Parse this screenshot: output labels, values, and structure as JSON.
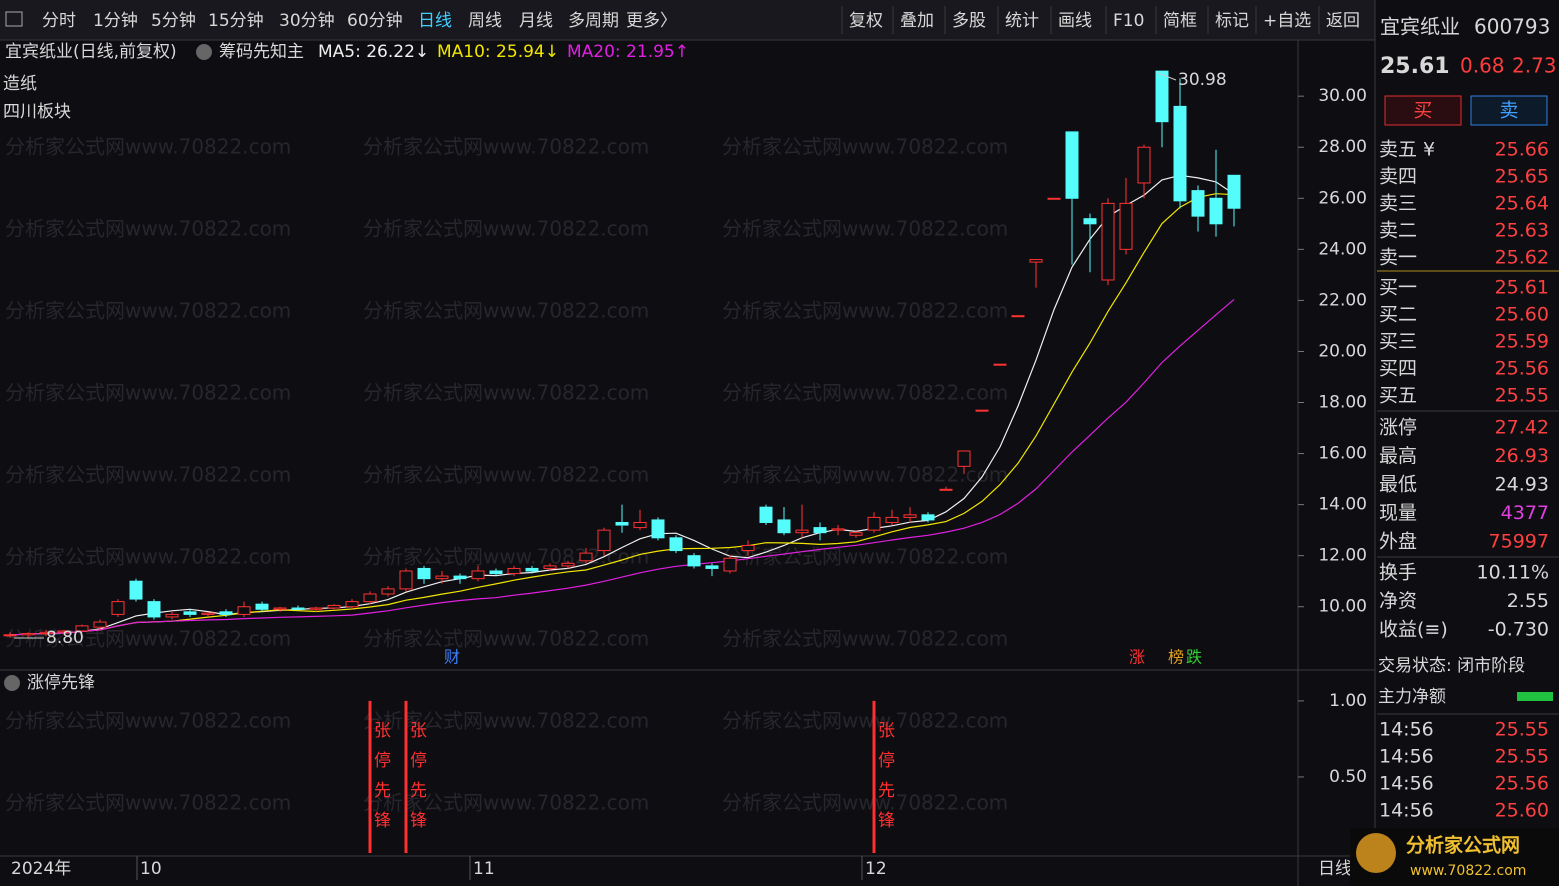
{
  "toolbar": {
    "left": [
      "分时",
      "1分钟",
      "5分钟",
      "15分钟",
      "30分钟",
      "60分钟",
      "日线",
      "周线",
      "月线",
      "多周期",
      "更多〉"
    ],
    "active_index": 6,
    "right": [
      "复权",
      "叠加",
      "多股",
      "统计",
      "画线",
      "F10",
      "简框",
      "标记",
      "+自选",
      "返回"
    ]
  },
  "chart": {
    "caption": "宜宾纸业(日线,前复权)",
    "indicator": "筹码先知主",
    "industry": "造纸",
    "region": "四川板块",
    "ma": [
      {
        "label": "MA5: 26.22↓",
        "value": 26.22,
        "period": 5,
        "color": "#f0f0f0"
      },
      {
        "label": "MA10: 25.94↓",
        "value": 25.94,
        "period": 10,
        "color": "#f2e600"
      },
      {
        "label": "MA20: 21.95↑",
        "value": 21.95,
        "period": 20,
        "color": "#e020e0"
      }
    ],
    "ylim": [
      7.6,
      32.2
    ],
    "yticks": [
      {
        "value": 10,
        "label": "10.00"
      },
      {
        "value": 12,
        "label": "12.00"
      },
      {
        "value": 14,
        "label": "14.00"
      },
      {
        "value": 16,
        "label": "16.00"
      },
      {
        "value": 18,
        "label": "18.00"
      },
      {
        "value": 20,
        "label": "20.00"
      },
      {
        "value": 22,
        "label": "22.00"
      },
      {
        "value": 24,
        "label": "24.00"
      },
      {
        "value": 26,
        "label": "26.00"
      },
      {
        "value": 28,
        "label": "28.00"
      },
      {
        "value": 30,
        "label": "30.00"
      }
    ],
    "up_color": "#ff3232",
    "down_color": "#54fcfc",
    "candles": [
      [
        8.9,
        9.0,
        8.8,
        8.9
      ],
      [
        8.9,
        9.0,
        8.8,
        8.95
      ],
      [
        8.95,
        9.1,
        8.85,
        9.0
      ],
      [
        9.0,
        9.1,
        8.9,
        9.05
      ],
      [
        9.05,
        9.3,
        9.0,
        9.25
      ],
      [
        9.2,
        9.5,
        9.1,
        9.4
      ],
      [
        9.7,
        10.3,
        9.6,
        10.2
      ],
      [
        11.0,
        11.1,
        10.2,
        10.3
      ],
      [
        10.2,
        10.3,
        9.5,
        9.6
      ],
      [
        9.6,
        9.8,
        9.5,
        9.7
      ],
      [
        9.8,
        9.9,
        9.6,
        9.7
      ],
      [
        9.7,
        9.8,
        9.6,
        9.75
      ],
      [
        9.8,
        9.9,
        9.6,
        9.7
      ],
      [
        9.7,
        10.2,
        9.6,
        10.0
      ],
      [
        10.1,
        10.2,
        9.8,
        9.9
      ],
      [
        9.9,
        10.0,
        9.8,
        9.95
      ],
      [
        9.95,
        10.05,
        9.85,
        9.9
      ],
      [
        9.9,
        10.0,
        9.8,
        9.95
      ],
      [
        9.95,
        10.1,
        9.9,
        10.05
      ],
      [
        10.0,
        10.3,
        9.9,
        10.2
      ],
      [
        10.2,
        10.6,
        10.1,
        10.5
      ],
      [
        10.5,
        10.8,
        10.4,
        10.7
      ],
      [
        10.7,
        11.5,
        10.6,
        11.4
      ],
      [
        11.5,
        11.6,
        10.9,
        11.1
      ],
      [
        11.1,
        11.4,
        10.9,
        11.2
      ],
      [
        11.2,
        11.3,
        10.9,
        11.1
      ],
      [
        11.1,
        11.6,
        11.0,
        11.4
      ],
      [
        11.4,
        11.5,
        11.2,
        11.3
      ],
      [
        11.3,
        11.6,
        11.2,
        11.5
      ],
      [
        11.5,
        11.6,
        11.3,
        11.4
      ],
      [
        11.5,
        11.7,
        11.4,
        11.6
      ],
      [
        11.6,
        11.8,
        11.5,
        11.7
      ],
      [
        11.8,
        12.3,
        11.7,
        12.1
      ],
      [
        12.2,
        13.1,
        12.0,
        13.0
      ],
      [
        13.3,
        14.0,
        12.9,
        13.2
      ],
      [
        13.1,
        13.8,
        13.0,
        13.3
      ],
      [
        13.4,
        13.5,
        12.6,
        12.7
      ],
      [
        12.7,
        12.8,
        12.1,
        12.2
      ],
      [
        12.0,
        12.1,
        11.5,
        11.6
      ],
      [
        11.6,
        11.7,
        11.2,
        11.5
      ],
      [
        11.4,
        12.0,
        11.3,
        11.9
      ],
      [
        12.2,
        12.6,
        12.0,
        12.4
      ],
      [
        13.9,
        14.0,
        13.2,
        13.3
      ],
      [
        13.4,
        13.9,
        12.8,
        12.9
      ],
      [
        12.9,
        14.0,
        12.7,
        13.0
      ],
      [
        13.1,
        13.3,
        12.6,
        12.9
      ],
      [
        13.0,
        13.2,
        12.8,
        13.05
      ],
      [
        12.8,
        13.0,
        12.7,
        12.9
      ],
      [
        13.0,
        13.7,
        12.9,
        13.5
      ],
      [
        13.3,
        13.8,
        13.2,
        13.5
      ],
      [
        13.5,
        13.9,
        13.3,
        13.6
      ],
      [
        13.6,
        13.7,
        13.3,
        13.4
      ],
      [
        14.6,
        14.7,
        14.6,
        14.6
      ],
      [
        15.5,
        16.1,
        15.2,
        16.1
      ],
      [
        17.7,
        17.7,
        17.7,
        17.7
      ],
      [
        19.5,
        19.5,
        19.5,
        19.5
      ],
      [
        21.4,
        21.4,
        21.4,
        21.4
      ],
      [
        23.5,
        23.6,
        22.5,
        23.6
      ],
      [
        26.0,
        26.0,
        26.0,
        26.0
      ],
      [
        28.6,
        28.6,
        23.4,
        26.0
      ],
      [
        25.2,
        25.4,
        23.1,
        25.0
      ],
      [
        22.8,
        26.0,
        22.6,
        25.8
      ],
      [
        24.0,
        26.8,
        23.8,
        25.8
      ],
      [
        26.6,
        28.1,
        26.0,
        28.0
      ],
      [
        30.98,
        30.98,
        28.0,
        29.0
      ],
      [
        29.6,
        30.7,
        25.6,
        25.9
      ],
      [
        26.3,
        26.5,
        24.7,
        25.3
      ],
      [
        26.0,
        27.9,
        24.5,
        25.0
      ],
      [
        26.9,
        26.9,
        24.9,
        25.61
      ]
    ],
    "high_label": "30.98",
    "low_label": "8.80",
    "markers": [
      "财",
      "涨",
      "榜",
      "跌"
    ],
    "x_labels": [
      "2024年",
      "10",
      "11",
      "12"
    ],
    "period_label": "日线",
    "watermark": "分析家公式网www.70822.com"
  },
  "indicator": {
    "name": "涨停先锋",
    "signal_text": "张停先锋",
    "color": "#ff3030",
    "ylim": [
      0,
      1.19
    ],
    "yticks": [
      {
        "value": 0.5,
        "label": "0.50"
      },
      {
        "value": 1,
        "label": "1.00"
      }
    ],
    "values": [
      0,
      0,
      0,
      0,
      0,
      0,
      0,
      0,
      0,
      0,
      0,
      0,
      0,
      0,
      0,
      0,
      0,
      0,
      0,
      0,
      1,
      0,
      1,
      0,
      0,
      0,
      0,
      0,
      0,
      0,
      0,
      0,
      0,
      0,
      0,
      0,
      0,
      0,
      0,
      0,
      0,
      0,
      0,
      0,
      0,
      0,
      0,
      0,
      1,
      0,
      0,
      0,
      0,
      0,
      0,
      0,
      0,
      0,
      0,
      0,
      0,
      0,
      0,
      0,
      0,
      0,
      0,
      0,
      0
    ]
  },
  "quote": {
    "name": "宜宾纸业",
    "code": "600793",
    "price": "25.61",
    "change": "0.68",
    "pct": "2.73",
    "buy": "买",
    "sell": "卖",
    "asks": [
      [
        "卖五 ¥",
        "25.66"
      ],
      [
        "卖四",
        "25.65"
      ],
      [
        "卖三",
        "25.64"
      ],
      [
        "卖二",
        "25.63"
      ],
      [
        "卖一",
        "25.62"
      ]
    ],
    "bids": [
      [
        "买一",
        "25.61"
      ],
      [
        "买二",
        "25.60"
      ],
      [
        "买三",
        "25.59"
      ],
      [
        "买四",
        "25.56"
      ],
      [
        "买五",
        "25.55"
      ]
    ],
    "stats": [
      [
        "涨停",
        "27.42"
      ],
      [
        "最高",
        "26.93"
      ],
      [
        "最低",
        "24.93"
      ],
      [
        "现量",
        "4377"
      ],
      [
        "外盘",
        "75997"
      ]
    ],
    "stats2": [
      [
        "换手",
        "10.11%"
      ],
      [
        "净资",
        "2.55"
      ],
      [
        "收益(≡)",
        "-0.730"
      ]
    ],
    "status": "交易状态: 闭市阶段",
    "net_flow": "主力净额",
    "ticks": [
      [
        "14:56",
        "25.55"
      ],
      [
        "14:56",
        "25.55"
      ],
      [
        "14:56",
        "25.56"
      ],
      [
        "14:56",
        "25.60"
      ]
    ]
  },
  "logo": {
    "name": "分析家公式网",
    "url": "www.70822.com"
  }
}
